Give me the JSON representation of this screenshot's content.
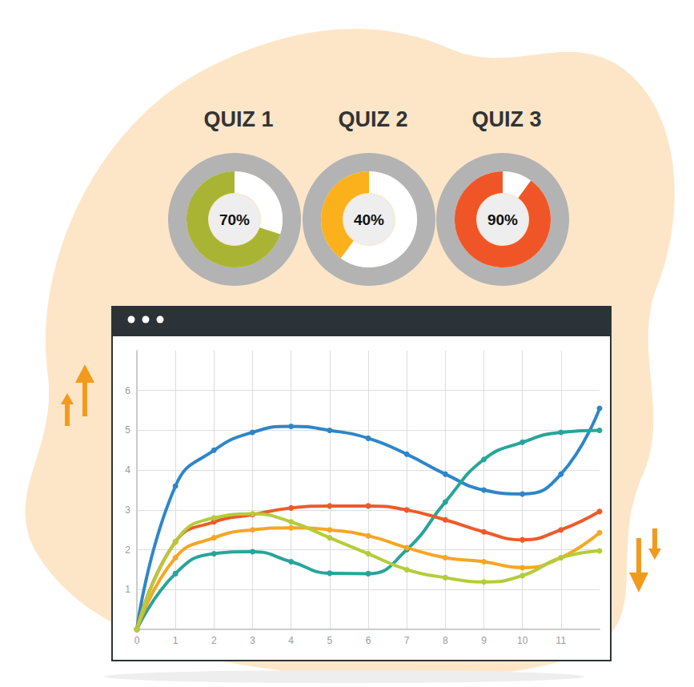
{
  "chart_data": [
    {
      "type": "pie",
      "title": "QUIZ 1",
      "values": [
        70
      ],
      "value_labels": [
        "70%"
      ],
      "color": "#a9b435"
    },
    {
      "type": "pie",
      "title": "QUIZ 2",
      "values": [
        40
      ],
      "value_labels": [
        "40%"
      ],
      "color": "#fbb11c"
    },
    {
      "type": "pie",
      "title": "QUIZ 3",
      "values": [
        90
      ],
      "value_labels": [
        "90%"
      ],
      "color": "#f05528"
    },
    {
      "type": "line",
      "x": [
        0,
        1,
        2,
        3,
        4,
        5,
        6,
        7,
        8,
        9,
        10,
        11,
        12
      ],
      "series": [
        {
          "color": "#2e86c9",
          "values": [
            0,
            3.6,
            4.5,
            4.95,
            5.1,
            5.0,
            4.8,
            4.4,
            3.9,
            3.5,
            3.4,
            3.9,
            5.55
          ]
        },
        {
          "color": "#27a59a",
          "values": [
            0,
            1.4,
            1.9,
            1.95,
            1.7,
            1.41,
            1.4,
            2.0,
            3.2,
            4.27,
            4.7,
            4.95,
            5.0
          ]
        },
        {
          "color": "#ee5a2a",
          "values": [
            0,
            2.2,
            2.7,
            2.88,
            3.05,
            3.1,
            3.1,
            3.0,
            2.75,
            2.45,
            2.25,
            2.5,
            2.96
          ]
        },
        {
          "color": "#f6a623",
          "values": [
            0,
            1.8,
            2.3,
            2.5,
            2.55,
            2.5,
            2.35,
            2.05,
            1.8,
            1.7,
            1.55,
            1.8,
            2.43
          ]
        },
        {
          "color": "#b5cc3a",
          "values": [
            0,
            2.2,
            2.8,
            2.9,
            2.7,
            2.3,
            1.9,
            1.5,
            1.3,
            1.19,
            1.35,
            1.8,
            1.97
          ]
        }
      ],
      "xlim": [
        0,
        12
      ],
      "xticks": [
        0,
        1,
        2,
        3,
        4,
        5,
        6,
        7,
        8,
        9,
        10,
        11
      ],
      "ylim": [
        0,
        7
      ],
      "yticks": [
        1,
        2,
        3,
        4,
        5,
        6
      ],
      "grid": true,
      "marker": "circle"
    }
  ]
}
